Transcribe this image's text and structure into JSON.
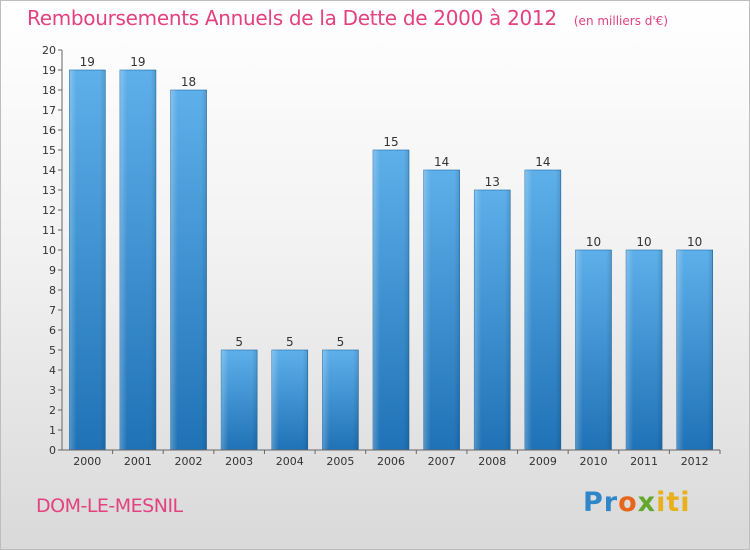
{
  "header": {
    "title": "Remboursements Annuels de la Dette de 2000 à 2012",
    "subtitle": "(en milliers d'€)"
  },
  "footer": {
    "city": "DOM-LE-MESNIL",
    "logo_text": "Proxiti"
  },
  "colors": {
    "title": "#e4417f",
    "bar_top": "#5eb0ea",
    "bar_bottom": "#1f72b6",
    "logo": [
      "#2f86c8",
      "#e8661b",
      "#62a82d",
      "#e8b01b"
    ]
  },
  "chart_data": {
    "type": "bar",
    "categories": [
      "2000",
      "2001",
      "2002",
      "2003",
      "2004",
      "2005",
      "2006",
      "2007",
      "2008",
      "2009",
      "2010",
      "2011",
      "2012"
    ],
    "values": [
      19,
      19,
      18,
      5,
      5,
      5,
      15,
      14,
      13,
      14,
      10,
      10,
      10
    ],
    "data_labels": [
      "19",
      "19",
      "18",
      "5",
      "5",
      "5",
      "15",
      "14",
      "13",
      "14",
      "10",
      "10",
      "10"
    ],
    "title": "Remboursements Annuels de la Dette de 2000 à 2012",
    "subtitle": "(en milliers d'€)",
    "xlabel": "",
    "ylabel": "",
    "ylim": [
      0,
      20
    ],
    "yticks": [
      "0",
      "1",
      "2",
      "3",
      "4",
      "5",
      "6",
      "7",
      "8",
      "9",
      "10",
      "11",
      "12",
      "13",
      "14",
      "15",
      "16",
      "17",
      "18",
      "19",
      "20"
    ],
    "grid": false,
    "legend": "none"
  }
}
